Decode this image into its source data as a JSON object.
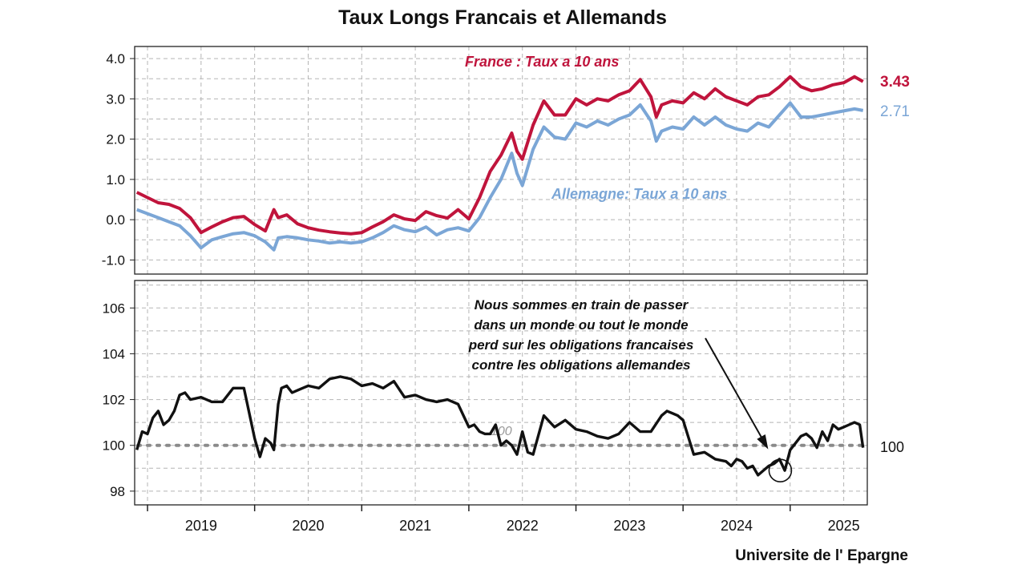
{
  "title": "Taux Longs Francais et Allemands",
  "source": "Universite de l' Epargne",
  "colors": {
    "france": "#c0143c",
    "germany": "#7ba6d6",
    "ratio": "#111111",
    "reference": "#888888"
  },
  "chart_data": [
    {
      "type": "line",
      "panel": "top",
      "title": "Taux Longs Francais et Allemands",
      "xlabel": "",
      "ylabel": "",
      "x_ticks": [
        "2019",
        "2020",
        "2021",
        "2022",
        "2023",
        "2024",
        "2025"
      ],
      "xlim": [
        2018.88,
        2025.72
      ],
      "ylim": [
        -1.35,
        4.3
      ],
      "y_ticks": [
        -1.0,
        0.0,
        1.0,
        2.0,
        3.0,
        4.0
      ],
      "y_tick_labels": [
        "-1.0",
        "0.0",
        "1.0",
        "2.0",
        "3.0",
        "4.0"
      ],
      "grid": true,
      "x": [
        2018.9,
        2019.0,
        2019.1,
        2019.2,
        2019.3,
        2019.4,
        2019.5,
        2019.6,
        2019.7,
        2019.8,
        2019.9,
        2020.0,
        2020.1,
        2020.18,
        2020.22,
        2020.3,
        2020.4,
        2020.5,
        2020.6,
        2020.7,
        2020.8,
        2020.9,
        2021.0,
        2021.1,
        2021.2,
        2021.3,
        2021.4,
        2021.5,
        2021.6,
        2021.7,
        2021.8,
        2021.9,
        2022.0,
        2022.1,
        2022.2,
        2022.3,
        2022.4,
        2022.45,
        2022.5,
        2022.6,
        2022.7,
        2022.8,
        2022.9,
        2023.0,
        2023.1,
        2023.2,
        2023.3,
        2023.4,
        2023.5,
        2023.6,
        2023.7,
        2023.75,
        2023.8,
        2023.9,
        2024.0,
        2024.1,
        2024.2,
        2024.3,
        2024.4,
        2024.5,
        2024.6,
        2024.7,
        2024.8,
        2024.9,
        2025.0,
        2025.1,
        2025.2,
        2025.3,
        2025.4,
        2025.5,
        2025.6,
        2025.68
      ],
      "series": [
        {
          "name": "France : Taux a 10 ans",
          "last_value_label": "3.43",
          "values": [
            0.68,
            0.55,
            0.42,
            0.38,
            0.28,
            0.05,
            -0.32,
            -0.18,
            -0.05,
            0.05,
            0.08,
            -0.12,
            -0.28,
            0.25,
            0.05,
            0.12,
            -0.1,
            -0.2,
            -0.26,
            -0.3,
            -0.33,
            -0.35,
            -0.32,
            -0.18,
            -0.05,
            0.12,
            0.02,
            -0.02,
            0.2,
            0.1,
            0.04,
            0.25,
            0.02,
            0.55,
            1.2,
            1.6,
            2.15,
            1.7,
            1.5,
            2.35,
            2.95,
            2.6,
            2.6,
            3.0,
            2.85,
            3.0,
            2.95,
            3.1,
            3.2,
            3.48,
            3.05,
            2.55,
            2.85,
            2.95,
            2.9,
            3.15,
            3.0,
            3.25,
            3.05,
            2.95,
            2.85,
            3.05,
            3.1,
            3.3,
            3.55,
            3.3,
            3.2,
            3.25,
            3.35,
            3.4,
            3.55,
            3.43
          ]
        },
        {
          "name": "Allemagne: Taux a 10 ans",
          "last_value_label": "2.71",
          "values": [
            0.25,
            0.15,
            0.05,
            -0.05,
            -0.15,
            -0.4,
            -0.7,
            -0.5,
            -0.42,
            -0.35,
            -0.32,
            -0.4,
            -0.55,
            -0.75,
            -0.45,
            -0.42,
            -0.45,
            -0.5,
            -0.53,
            -0.58,
            -0.55,
            -0.58,
            -0.55,
            -0.45,
            -0.32,
            -0.15,
            -0.25,
            -0.3,
            -0.18,
            -0.38,
            -0.25,
            -0.2,
            -0.28,
            0.05,
            0.55,
            1.0,
            1.65,
            1.15,
            0.85,
            1.75,
            2.3,
            2.05,
            2.0,
            2.4,
            2.3,
            2.45,
            2.35,
            2.5,
            2.6,
            2.85,
            2.45,
            1.95,
            2.2,
            2.3,
            2.25,
            2.55,
            2.35,
            2.55,
            2.35,
            2.25,
            2.2,
            2.4,
            2.3,
            2.6,
            2.9,
            2.55,
            2.55,
            2.6,
            2.65,
            2.7,
            2.75,
            2.71
          ]
        }
      ]
    },
    {
      "type": "line",
      "panel": "bottom",
      "xlabel": "",
      "ylabel": "",
      "xlim": [
        2018.88,
        2025.72
      ],
      "ylim": [
        97.4,
        107.2
      ],
      "y_ticks": [
        98,
        100,
        102,
        104,
        106
      ],
      "y_tick_labels": [
        "98",
        "100",
        "102",
        "104",
        "106"
      ],
      "reference_line": 100,
      "reference_label": "100",
      "inline_label": "100",
      "grid": true,
      "x": [
        2018.9,
        2018.95,
        2019.0,
        2019.05,
        2019.1,
        2019.15,
        2019.2,
        2019.25,
        2019.3,
        2019.35,
        2019.4,
        2019.5,
        2019.6,
        2019.7,
        2019.8,
        2019.9,
        2020.0,
        2020.05,
        2020.1,
        2020.15,
        2020.18,
        2020.22,
        2020.25,
        2020.3,
        2020.35,
        2020.4,
        2020.5,
        2020.6,
        2020.7,
        2020.8,
        2020.9,
        2021.0,
        2021.1,
        2021.2,
        2021.3,
        2021.4,
        2021.5,
        2021.6,
        2021.7,
        2021.8,
        2021.9,
        2022.0,
        2022.05,
        2022.1,
        2022.15,
        2022.2,
        2022.25,
        2022.3,
        2022.35,
        2022.4,
        2022.45,
        2022.5,
        2022.55,
        2022.6,
        2022.7,
        2022.8,
        2022.9,
        2023.0,
        2023.1,
        2023.2,
        2023.3,
        2023.4,
        2023.5,
        2023.6,
        2023.7,
        2023.8,
        2023.85,
        2023.9,
        2023.95,
        2024.0,
        2024.1,
        2024.2,
        2024.3,
        2024.4,
        2024.45,
        2024.5,
        2024.55,
        2024.6,
        2024.65,
        2024.7,
        2024.75,
        2024.8,
        2024.85,
        2024.9,
        2024.95,
        2025.0,
        2025.05,
        2025.1,
        2025.15,
        2025.2,
        2025.25,
        2025.3,
        2025.35,
        2025.4,
        2025.45,
        2025.5,
        2025.55,
        2025.6,
        2025.65,
        2025.68
      ],
      "series": [
        {
          "name": "",
          "values": [
            99.8,
            100.6,
            100.5,
            101.2,
            101.5,
            100.9,
            101.1,
            101.5,
            102.2,
            102.3,
            102.0,
            102.1,
            101.9,
            101.9,
            102.5,
            102.5,
            100.3,
            99.5,
            100.3,
            100.1,
            99.8,
            101.8,
            102.5,
            102.6,
            102.3,
            102.4,
            102.6,
            102.5,
            102.9,
            103.0,
            102.9,
            102.6,
            102.7,
            102.5,
            102.8,
            102.1,
            102.2,
            102.0,
            101.9,
            102.0,
            101.8,
            100.8,
            100.9,
            100.6,
            100.5,
            100.5,
            100.9,
            100.0,
            100.2,
            100.0,
            99.6,
            100.6,
            99.7,
            99.6,
            101.3,
            100.8,
            101.1,
            100.7,
            100.6,
            100.4,
            100.3,
            100.5,
            101.0,
            100.6,
            100.6,
            101.3,
            101.5,
            101.4,
            101.3,
            101.1,
            99.6,
            99.7,
            99.4,
            99.3,
            99.1,
            99.4,
            99.3,
            99.0,
            99.1,
            98.7,
            98.9,
            99.1,
            99.2,
            99.4,
            98.9,
            99.8,
            100.1,
            100.4,
            100.5,
            100.3,
            99.9,
            100.6,
            100.2,
            100.9,
            100.7,
            100.8,
            100.9,
            101.0,
            100.9,
            99.9
          ]
        }
      ],
      "annotation": {
        "lines": [
          "Nous sommes en train de passer",
          "dans un monde ou tout le monde",
          "perd sur les obligations francaises",
          "contre les obligations allemandes"
        ],
        "points_to_x": 2024.9,
        "points_to_y": 98.9
      }
    }
  ]
}
